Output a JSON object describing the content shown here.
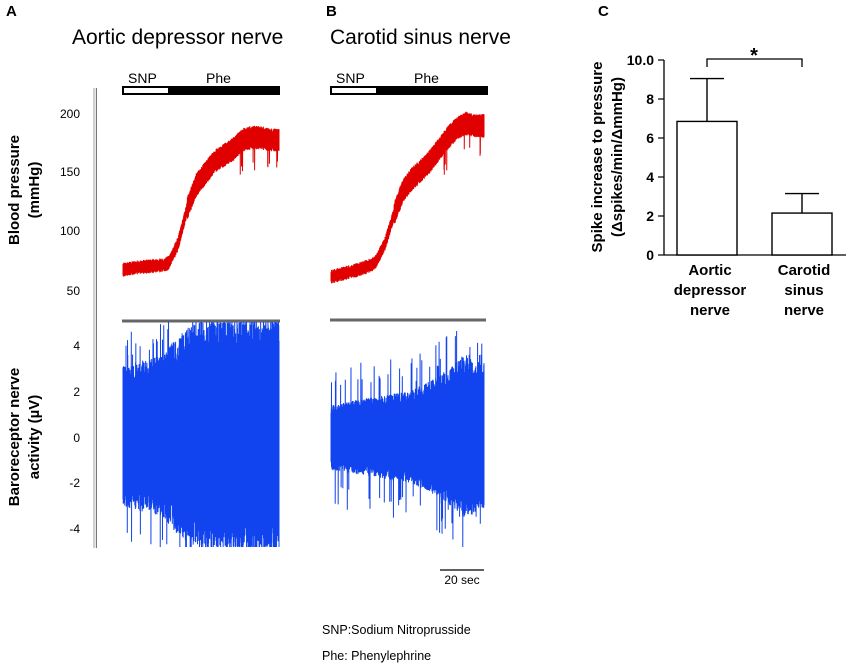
{
  "panels": {
    "a": {
      "letter": "A",
      "title": "Aortic depressor nerve"
    },
    "b": {
      "letter": "B",
      "title": "Carotid sinus nerve"
    },
    "c": {
      "letter": "C"
    }
  },
  "drug_bar": {
    "snp_label": "SNP",
    "phe_label": "Phe"
  },
  "traces": {
    "bp_ylabel_line1": "Blood pressure",
    "bp_ylabel_line2": "(mmHg)",
    "bp_ticks": [
      "200",
      "150",
      "100",
      "50"
    ],
    "nerve_ylabel_line1": "Baroreceptor nerve",
    "nerve_ylabel_line2": "activity (µV)",
    "nerve_ticks": [
      "4",
      "2",
      "0",
      "-2",
      "-4"
    ],
    "scale_bar_label": "20 sec",
    "bp_color": "#e00000",
    "nerve_color": "#1144ee"
  },
  "notes": {
    "snp": "SNP:Sodium Nitroprusside",
    "phe": "Phe: Phenylephrine"
  },
  "chart_data": [
    {
      "type": "line",
      "panel": "A",
      "title": "Aortic depressor nerve",
      "ylabel": "Blood pressure (mmHg)",
      "yticks": [
        50,
        100,
        150,
        200
      ],
      "ylim": [
        40,
        215
      ],
      "time_s": [
        0,
        6,
        12,
        18,
        20,
        24,
        28,
        32,
        36,
        40,
        44,
        48,
        52,
        56,
        60,
        64,
        68
      ],
      "blood_pressure_mmHg": [
        68,
        70,
        71,
        72,
        74,
        90,
        120,
        140,
        150,
        160,
        165,
        170,
        178,
        180,
        180,
        178,
        178
      ],
      "nerve_activity_envelope_uV": [
        3.0,
        3.2,
        3.3,
        3.5,
        3.8,
        4.3,
        4.6,
        4.8,
        5.0,
        5.0,
        5.0,
        5.0,
        5.0,
        5.0,
        5.0,
        5.0,
        5.0
      ],
      "nerve_ylabel": "Baroreceptor nerve activity (µV)",
      "nerve_yticks": [
        -4,
        -2,
        0,
        2,
        4
      ]
    },
    {
      "type": "line",
      "panel": "B",
      "title": "Carotid sinus nerve",
      "time_s": [
        0,
        6,
        12,
        18,
        20,
        24,
        28,
        32,
        36,
        40,
        44,
        48,
        52,
        56,
        60,
        64,
        68
      ],
      "blood_pressure_mmHg": [
        62,
        65,
        68,
        72,
        75,
        90,
        115,
        135,
        145,
        152,
        160,
        170,
        180,
        188,
        192,
        190,
        190
      ],
      "nerve_activity_envelope_uV": [
        1.4,
        1.5,
        1.6,
        1.7,
        1.7,
        1.8,
        1.9,
        1.9,
        2.0,
        2.2,
        2.4,
        2.6,
        2.9,
        3.2,
        3.6,
        3.3,
        3.1
      ]
    },
    {
      "type": "bar",
      "panel": "C",
      "categories": [
        "Aortic depressor nerve",
        "Carotid sinus nerve"
      ],
      "category_lines": [
        [
          "Aortic",
          "depressor",
          "nerve"
        ],
        [
          "Carotid",
          "sinus",
          "nerve"
        ]
      ],
      "values": [
        6.85,
        2.15
      ],
      "errors": [
        2.2,
        1.0
      ],
      "ylabel_line1": "Spike increase to pressure",
      "ylabel_line2": "(Δspikes/min/ΔmmHg)",
      "ylim": [
        0,
        10
      ],
      "yticks": [
        "0",
        "2",
        "4",
        "6",
        "8",
        "10.0"
      ],
      "significance": "*"
    }
  ]
}
